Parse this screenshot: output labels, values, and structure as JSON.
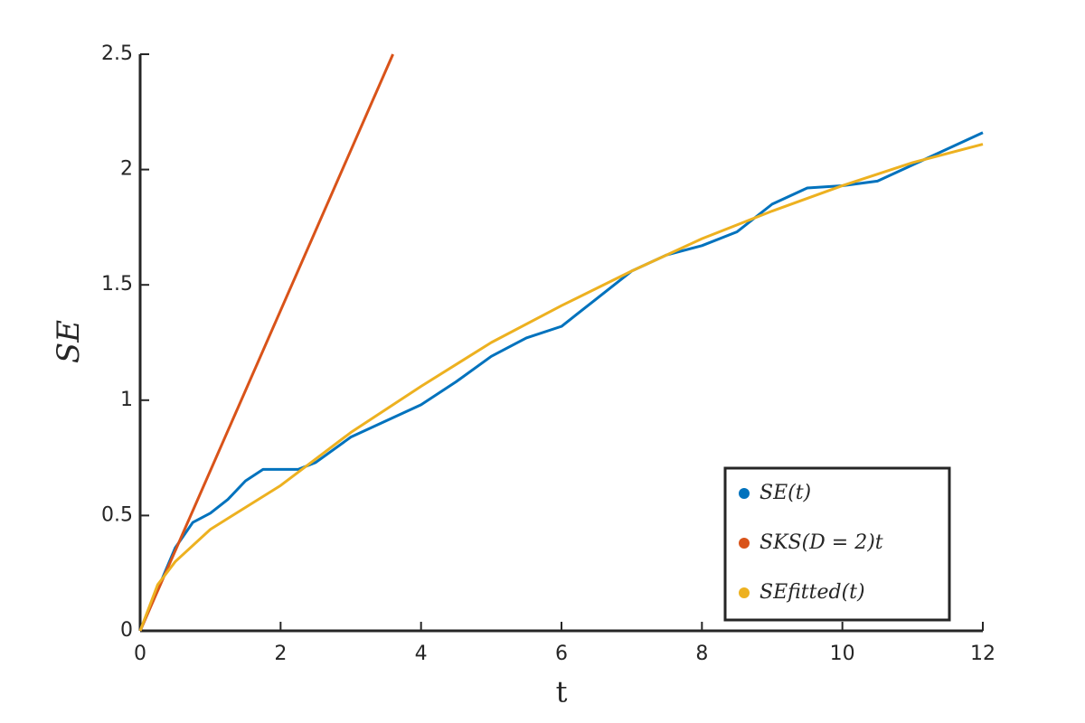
{
  "chart_data": {
    "type": "line",
    "xlabel": "t",
    "ylabel": "SE",
    "xlim": [
      0,
      12
    ],
    "ylim": [
      0,
      2.5
    ],
    "xticks": [
      0,
      2,
      4,
      6,
      8,
      10,
      12
    ],
    "yticks": [
      0,
      0.5,
      1,
      1.5,
      2,
      2.5
    ],
    "legend": "lower right",
    "series": [
      {
        "name": "SE(t)",
        "color": "#0072bd",
        "x": [
          0,
          0.25,
          0.5,
          0.75,
          1,
          1.25,
          1.5,
          1.75,
          2,
          2.25,
          2.5,
          3,
          3.5,
          4,
          4.5,
          5,
          5.5,
          6,
          6.5,
          7,
          7.5,
          8,
          8.5,
          9,
          9.5,
          10,
          10.5,
          11,
          11.5,
          12
        ],
        "values": [
          0,
          0.18,
          0.36,
          0.47,
          0.51,
          0.57,
          0.65,
          0.7,
          0.7,
          0.7,
          0.73,
          0.84,
          0.91,
          0.98,
          1.08,
          1.19,
          1.27,
          1.32,
          1.44,
          1.56,
          1.63,
          1.67,
          1.73,
          1.85,
          1.92,
          1.93,
          1.95,
          2.02,
          2.09,
          2.16
        ]
      },
      {
        "name": "SKS(D = 2)t",
        "color": "#d95319",
        "x": [
          0,
          3.6
        ],
        "values": [
          0,
          2.5
        ]
      },
      {
        "name": "SEfitted(t)",
        "color": "#edb120",
        "x": [
          0,
          0.25,
          0.5,
          1,
          2,
          3,
          4,
          5,
          6,
          7,
          8,
          9,
          10,
          11,
          12
        ],
        "values": [
          0,
          0.2,
          0.3,
          0.44,
          0.63,
          0.86,
          1.06,
          1.25,
          1.41,
          1.56,
          1.7,
          1.82,
          1.93,
          2.03,
          2.11
        ]
      }
    ]
  }
}
